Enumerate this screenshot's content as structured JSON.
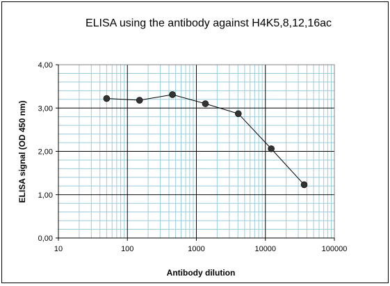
{
  "chart_data": {
    "type": "line",
    "title": "ELISA using the antibody against H4K5,8,12,16ac",
    "xlabel": "Antibody dilution",
    "ylabel": "ELISA signal (OD 450 nm)",
    "x_scale": "log",
    "xlim": [
      10,
      100000
    ],
    "ylim": [
      0,
      4
    ],
    "x_ticks": [
      10,
      100,
      1000,
      10000,
      100000
    ],
    "x_tick_labels": [
      "10",
      "100",
      "1000",
      "10000",
      "100000"
    ],
    "y_ticks": [
      0,
      1,
      2,
      3,
      4
    ],
    "y_tick_labels": [
      "0,00",
      "1,00",
      "2,00",
      "3,00",
      "4,00"
    ],
    "grid": true,
    "legend": "none",
    "series": [
      {
        "x": [
          50,
          150,
          450,
          1350,
          4050,
          12150,
          36450
        ],
        "y": [
          3.22,
          3.18,
          3.31,
          3.1,
          2.87,
          2.06,
          1.23
        ]
      }
    ],
    "colors": {
      "plot_background": "#ffffff",
      "minor_grid": "#99ccdd",
      "major_grid": "#000000",
      "line": "#000000",
      "marker": "#333333"
    }
  }
}
